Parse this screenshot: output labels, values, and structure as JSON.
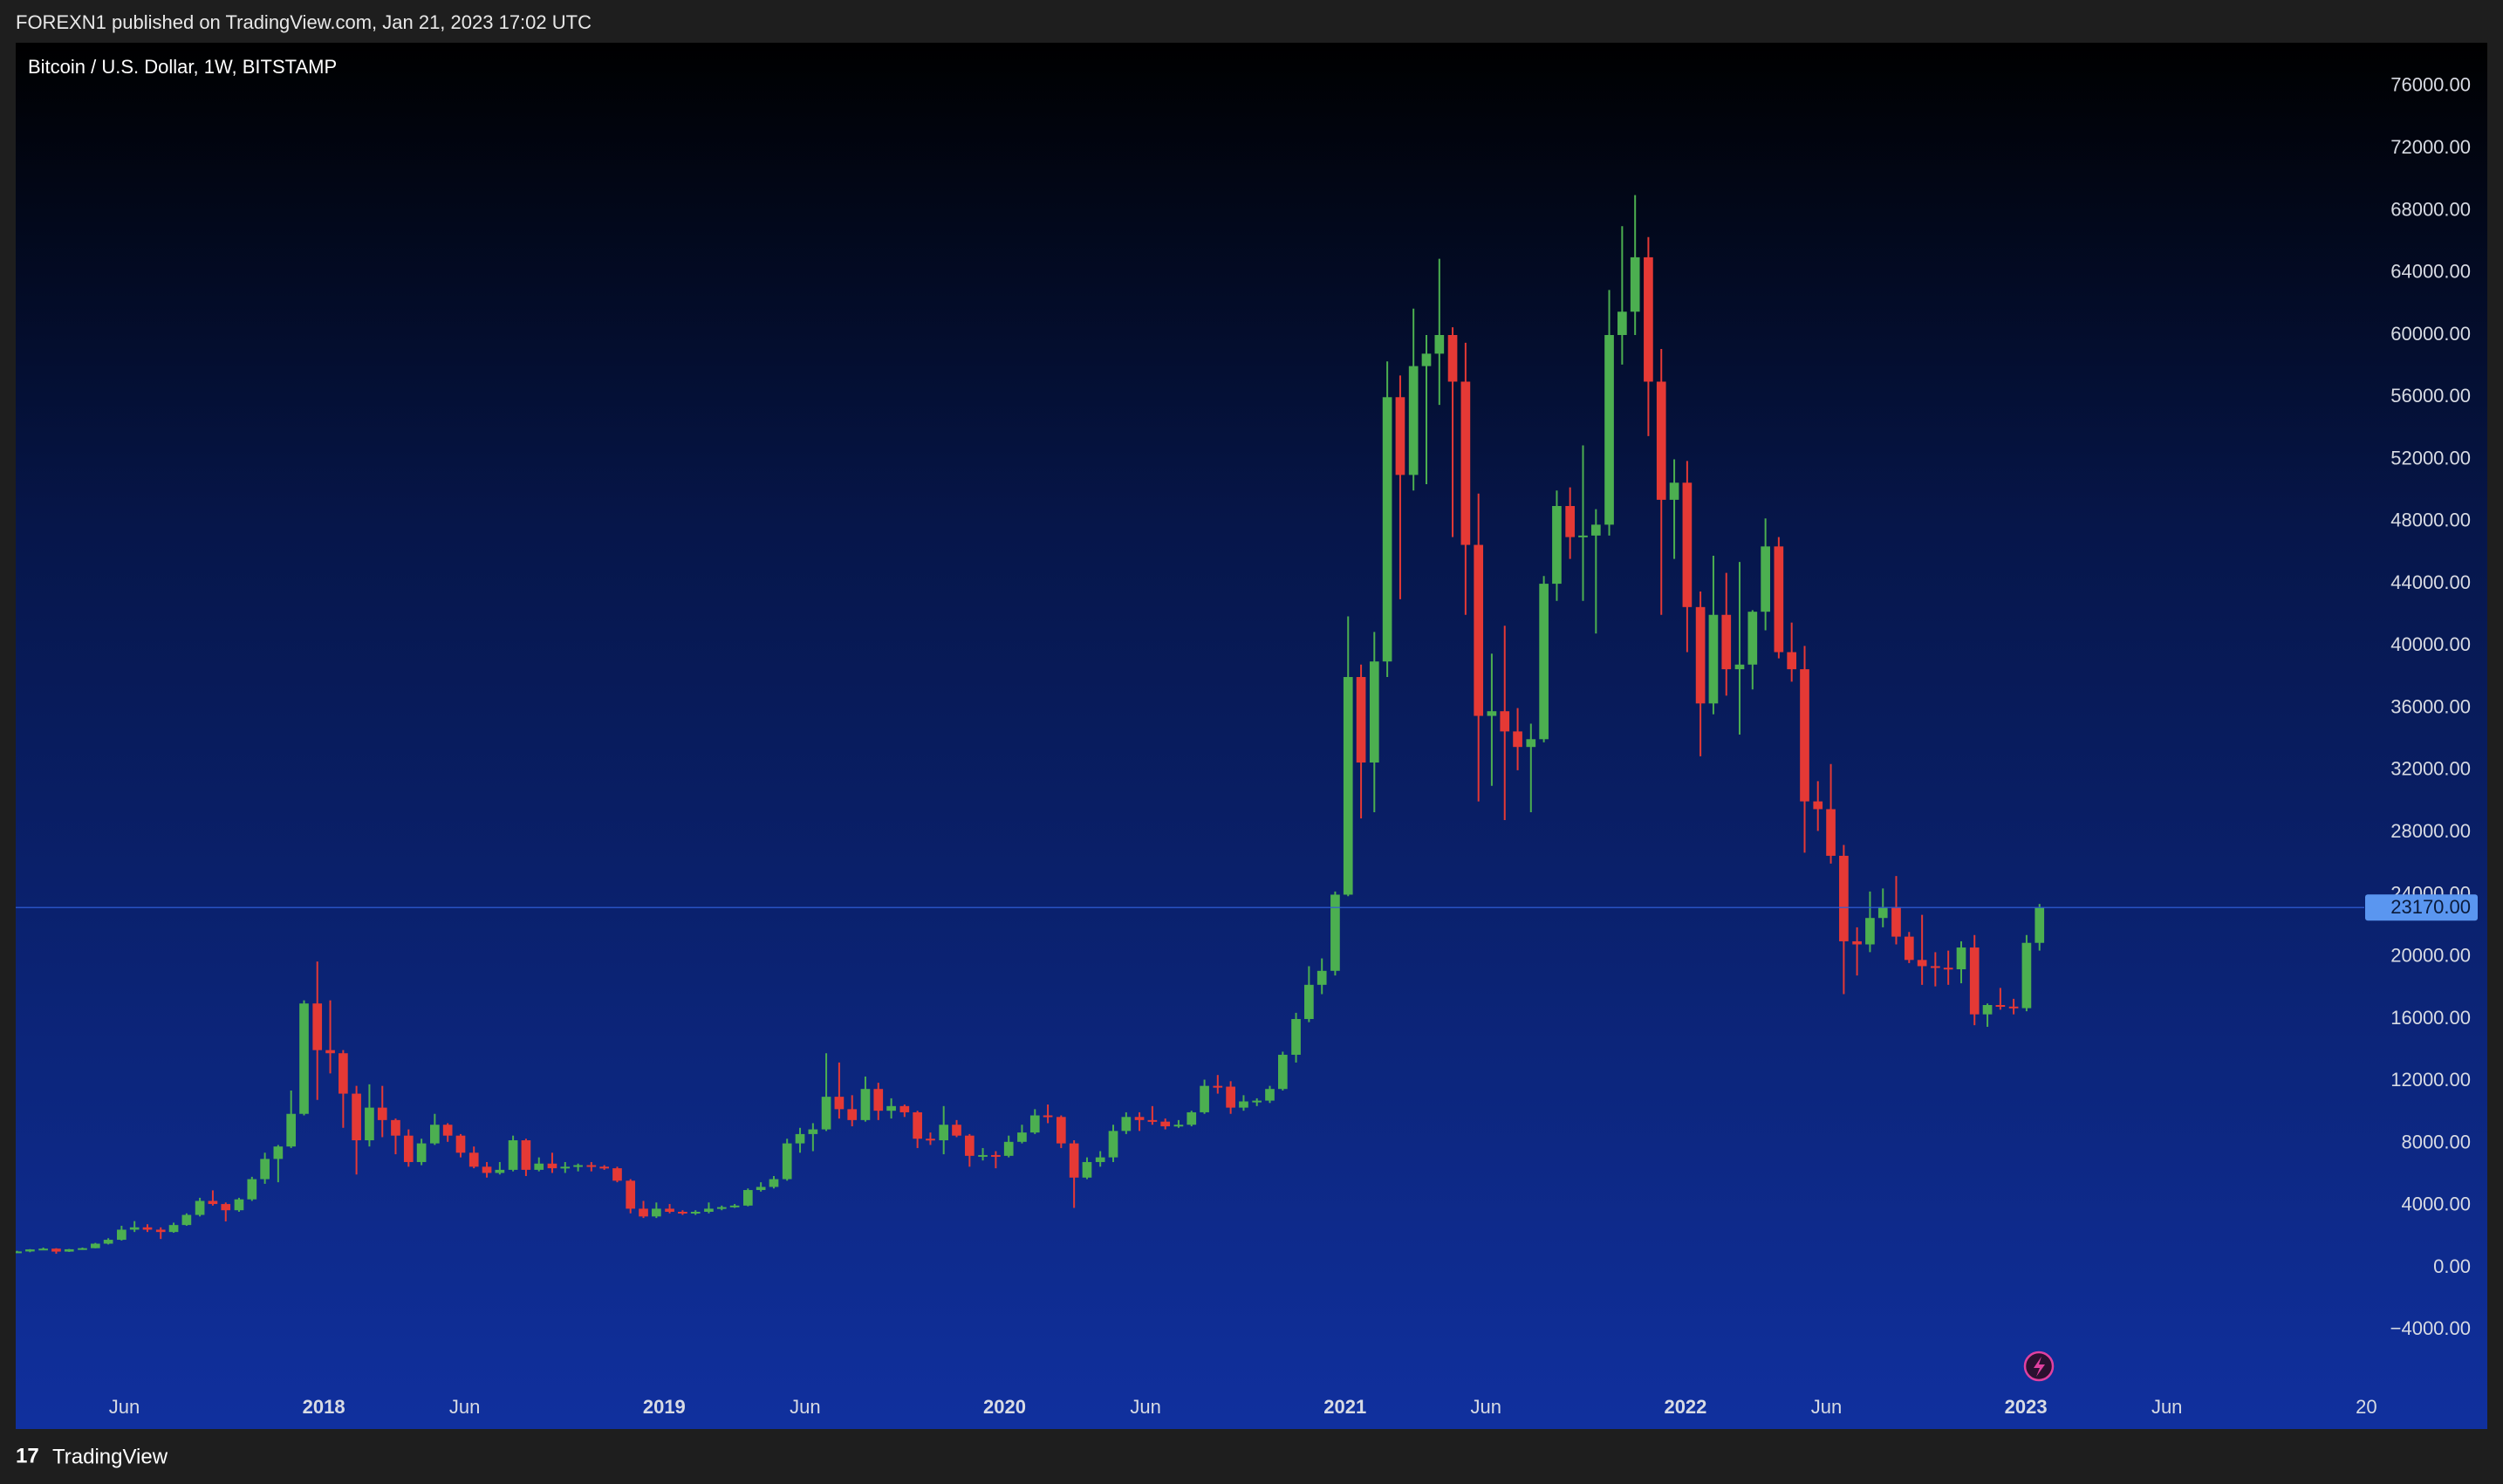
{
  "header": {
    "published": "FOREXN1 published on TradingView.com, Jan 21, 2023 17:02 UTC"
  },
  "footer": {
    "brand": "TradingView"
  },
  "chart_data": {
    "type": "candlestick",
    "title": "Bitcoin / U.S. Dollar, 1W, BITSTAMP",
    "up_color": "#4caf50",
    "down_color": "#e53935",
    "grid": false,
    "xlim": [
      2017.095,
      2023.994
    ],
    "xticks": [
      {
        "value": 2017.414,
        "label": "Jun"
      },
      2018,
      {
        "value": 2018.414,
        "label": "Jun"
      },
      2019,
      {
        "value": 2019.414,
        "label": "Jun"
      },
      2020,
      {
        "value": 2020.414,
        "label": "Jun"
      },
      2021,
      {
        "value": 2021.414,
        "label": "Jun"
      },
      2022,
      {
        "value": 2022.414,
        "label": "Jun"
      },
      2023,
      {
        "value": 2023.414,
        "label": "Jun"
      },
      {
        "value": 2024,
        "label": "20"
      }
    ],
    "ylim": [
      -7400,
      78800
    ],
    "yticks": [
      {
        "value": -4000,
        "label": "−4000.00"
      },
      {
        "value": 0,
        "label": "0.00"
      },
      {
        "value": 4000,
        "label": "4000.00"
      },
      {
        "value": 8000,
        "label": "8000.00"
      },
      {
        "value": 12000,
        "label": "12000.00"
      },
      {
        "value": 16000,
        "label": "16000.00"
      },
      {
        "value": 20000,
        "label": "20000.00"
      },
      {
        "value": 24000,
        "label": "24000.00"
      },
      {
        "value": 28000,
        "label": "28000.00"
      },
      {
        "value": 32000,
        "label": "32000.00"
      },
      {
        "value": 36000,
        "label": "36000.00"
      },
      {
        "value": 40000,
        "label": "40000.00"
      },
      {
        "value": 44000,
        "label": "44000.00"
      },
      {
        "value": 48000,
        "label": "48000.00"
      },
      {
        "value": 52000,
        "label": "52000.00"
      },
      {
        "value": 56000,
        "label": "56000.00"
      },
      {
        "value": 60000,
        "label": "60000.00"
      },
      {
        "value": 64000,
        "label": "64000.00"
      },
      {
        "value": 68000,
        "label": "68000.00"
      },
      {
        "value": 72000,
        "label": "72000.00"
      },
      {
        "value": 76000,
        "label": "76000.00"
      }
    ],
    "last_price": 23170,
    "last_price_label": "23170.00",
    "x": [
      2017.099,
      2017.137,
      2017.176,
      2017.214,
      2017.252,
      2017.291,
      2017.329,
      2017.367,
      2017.406,
      2017.444,
      2017.482,
      2017.521,
      2017.559,
      2017.597,
      2017.636,
      2017.674,
      2017.712,
      2017.751,
      2017.789,
      2017.827,
      2017.866,
      2017.904,
      2017.942,
      2017.981,
      2018.019,
      2018.057,
      2018.096,
      2018.134,
      2018.172,
      2018.211,
      2018.249,
      2018.287,
      2018.326,
      2018.364,
      2018.402,
      2018.441,
      2018.479,
      2018.517,
      2018.556,
      2018.594,
      2018.632,
      2018.671,
      2018.709,
      2018.747,
      2018.786,
      2018.824,
      2018.862,
      2018.901,
      2018.939,
      2018.977,
      2019.016,
      2019.054,
      2019.092,
      2019.131,
      2019.169,
      2019.207,
      2019.246,
      2019.284,
      2019.322,
      2019.361,
      2019.399,
      2019.437,
      2019.476,
      2019.514,
      2019.552,
      2019.591,
      2019.629,
      2019.667,
      2019.706,
      2019.744,
      2019.782,
      2019.821,
      2019.859,
      2019.897,
      2019.936,
      2019.974,
      2020.012,
      2020.051,
      2020.089,
      2020.127,
      2020.166,
      2020.204,
      2020.242,
      2020.281,
      2020.319,
      2020.357,
      2020.396,
      2020.434,
      2020.472,
      2020.511,
      2020.549,
      2020.587,
      2020.626,
      2020.664,
      2020.702,
      2020.741,
      2020.779,
      2020.817,
      2020.856,
      2020.894,
      2020.932,
      2020.971,
      2021.009,
      2021.047,
      2021.086,
      2021.124,
      2021.162,
      2021.201,
      2021.239,
      2021.277,
      2021.316,
      2021.354,
      2021.392,
      2021.431,
      2021.469,
      2021.507,
      2021.546,
      2021.584,
      2021.622,
      2021.661,
      2021.699,
      2021.737,
      2021.776,
      2021.814,
      2021.852,
      2021.891,
      2021.929,
      2021.967,
      2022.005,
      2022.044,
      2022.082,
      2022.12,
      2022.159,
      2022.197,
      2022.235,
      2022.274,
      2022.312,
      2022.35,
      2022.389,
      2022.427,
      2022.465,
      2022.504,
      2022.542,
      2022.58,
      2022.619,
      2022.657,
      2022.695,
      2022.734,
      2022.772,
      2022.81,
      2022.849,
      2022.887,
      2022.925,
      2022.964,
      2023.002,
      2023.04
    ],
    "ohlc": [
      [
        1000,
        1090,
        970,
        1050
      ],
      [
        1050,
        1200,
        1000,
        1180
      ],
      [
        1180,
        1300,
        1150,
        1230
      ],
      [
        1230,
        1260,
        900,
        1040
      ],
      [
        1040,
        1210,
        1020,
        1190
      ],
      [
        1190,
        1300,
        1150,
        1260
      ],
      [
        1260,
        1600,
        1250,
        1550
      ],
      [
        1550,
        1900,
        1500,
        1800
      ],
      [
        1800,
        2700,
        1750,
        2450
      ],
      [
        2450,
        3000,
        2300,
        2600
      ],
      [
        2600,
        2800,
        2300,
        2450
      ],
      [
        2450,
        2600,
        1850,
        2300
      ],
      [
        2300,
        2900,
        2250,
        2750
      ],
      [
        2750,
        3500,
        2700,
        3400
      ],
      [
        3400,
        4500,
        3300,
        4300
      ],
      [
        4300,
        4980,
        4000,
        4100
      ],
      [
        4100,
        4200,
        2980,
        3700
      ],
      [
        3700,
        4500,
        3600,
        4400
      ],
      [
        4400,
        5850,
        4300,
        5700
      ],
      [
        5700,
        7400,
        5400,
        7000
      ],
      [
        7000,
        7900,
        5500,
        7800
      ],
      [
        7800,
        11400,
        7700,
        9900
      ],
      [
        9900,
        17200,
        9800,
        17000
      ],
      [
        17000,
        19700,
        10800,
        14000
      ],
      [
        14000,
        17200,
        12500,
        13800
      ],
      [
        13800,
        14000,
        9000,
        11200
      ],
      [
        11200,
        11700,
        6000,
        8200
      ],
      [
        8200,
        11800,
        7800,
        10300
      ],
      [
        10300,
        11700,
        8400,
        9500
      ],
      [
        9500,
        9600,
        7300,
        8500
      ],
      [
        8500,
        8900,
        6500,
        6800
      ],
      [
        6800,
        8300,
        6600,
        8000
      ],
      [
        8000,
        9900,
        7900,
        9200
      ],
      [
        9200,
        9300,
        8100,
        8500
      ],
      [
        8500,
        8600,
        7100,
        7400
      ],
      [
        7400,
        7800,
        6400,
        6500
      ],
      [
        6500,
        6800,
        5800,
        6100
      ],
      [
        6100,
        6800,
        6000,
        6300
      ],
      [
        6300,
        8500,
        6200,
        8200
      ],
      [
        8200,
        8300,
        5900,
        6300
      ],
      [
        6300,
        7100,
        6200,
        6700
      ],
      [
        6700,
        7400,
        6100,
        6400
      ],
      [
        6400,
        6800,
        6100,
        6500
      ],
      [
        6500,
        6700,
        6200,
        6600
      ],
      [
        6600,
        6800,
        6200,
        6500
      ],
      [
        6500,
        6600,
        6300,
        6400
      ],
      [
        6400,
        6500,
        5500,
        5600
      ],
      [
        5600,
        5700,
        3500,
        3800
      ],
      [
        3800,
        4300,
        3200,
        3300
      ],
      [
        3300,
        4200,
        3200,
        3800
      ],
      [
        3800,
        4100,
        3500,
        3600
      ],
      [
        3600,
        3700,
        3400,
        3500
      ],
      [
        3500,
        3700,
        3400,
        3600
      ],
      [
        3600,
        4200,
        3500,
        3800
      ],
      [
        3800,
        4000,
        3700,
        3900
      ],
      [
        3900,
        4100,
        3850,
        4000
      ],
      [
        4000,
        5100,
        3950,
        5000
      ],
      [
        5000,
        5500,
        4900,
        5200
      ],
      [
        5200,
        5900,
        5100,
        5700
      ],
      [
        5700,
        8300,
        5600,
        8000
      ],
      [
        8000,
        9000,
        7400,
        8600
      ],
      [
        8600,
        9300,
        7500,
        8900
      ],
      [
        8900,
        13800,
        8800,
        11000
      ],
      [
        11000,
        13200,
        9600,
        10200
      ],
      [
        10200,
        11100,
        9100,
        9500
      ],
      [
        9500,
        12300,
        9400,
        11500
      ],
      [
        11500,
        11900,
        9500,
        10100
      ],
      [
        10100,
        10900,
        9600,
        10400
      ],
      [
        10400,
        10500,
        9700,
        10000
      ],
      [
        10000,
        10100,
        7700,
        8300
      ],
      [
        8300,
        8700,
        7900,
        8200
      ],
      [
        8200,
        10400,
        7300,
        9200
      ],
      [
        9200,
        9500,
        8400,
        8500
      ],
      [
        8500,
        8600,
        6500,
        7200
      ],
      [
        7200,
        7700,
        6900,
        7250
      ],
      [
        7250,
        7500,
        6400,
        7200
      ],
      [
        7200,
        8500,
        7100,
        8100
      ],
      [
        8100,
        9200,
        8000,
        8700
      ],
      [
        8700,
        10200,
        8600,
        9800
      ],
      [
        9800,
        10500,
        9300,
        9700
      ],
      [
        9700,
        9800,
        7700,
        8000
      ],
      [
        8000,
        8200,
        3850,
        5800
      ],
      [
        5800,
        7100,
        5700,
        6800
      ],
      [
        6800,
        7500,
        6500,
        7100
      ],
      [
        7100,
        9200,
        6800,
        8800
      ],
      [
        8800,
        10000,
        8600,
        9700
      ],
      [
        9700,
        10000,
        8800,
        9500
      ],
      [
        9500,
        10400,
        9200,
        9400
      ],
      [
        9400,
        9600,
        8900,
        9100
      ],
      [
        9100,
        9500,
        9000,
        9200
      ],
      [
        9200,
        10100,
        9100,
        10000
      ],
      [
        10000,
        12100,
        9900,
        11700
      ],
      [
        11700,
        12400,
        11200,
        11650
      ],
      [
        11650,
        12000,
        9900,
        10300
      ],
      [
        10300,
        11100,
        10100,
        10700
      ],
      [
        10700,
        10900,
        10400,
        10750
      ],
      [
        10750,
        11700,
        10600,
        11500
      ],
      [
        11500,
        13900,
        11400,
        13700
      ],
      [
        13700,
        16400,
        13200,
        16000
      ],
      [
        16000,
        19400,
        15800,
        18200
      ],
      [
        18200,
        19900,
        17600,
        19100
      ],
      [
        19100,
        24200,
        18800,
        24000
      ],
      [
        24000,
        41900,
        23900,
        38000
      ],
      [
        38000,
        38800,
        28900,
        32500
      ],
      [
        32500,
        40900,
        29300,
        39000
      ],
      [
        39000,
        58300,
        38000,
        56000
      ],
      [
        56000,
        57400,
        43000,
        51000
      ],
      [
        51000,
        61700,
        50000,
        58000
      ],
      [
        58000,
        60000,
        50400,
        58800
      ],
      [
        58800,
        64900,
        55500,
        60000
      ],
      [
        60000,
        60500,
        47000,
        57000
      ],
      [
        57000,
        59500,
        42000,
        46500
      ],
      [
        46500,
        49800,
        30000,
        35500
      ],
      [
        35500,
        39500,
        31000,
        35800
      ],
      [
        35800,
        41300,
        28800,
        34500
      ],
      [
        34500,
        36000,
        32000,
        33500
      ],
      [
        33500,
        35000,
        29300,
        34000
      ],
      [
        34000,
        44500,
        33800,
        44000
      ],
      [
        44000,
        50000,
        42900,
        49000
      ],
      [
        49000,
        50200,
        45600,
        47000
      ],
      [
        47000,
        52900,
        42900,
        47100
      ],
      [
        47100,
        48800,
        40800,
        47800
      ],
      [
        47800,
        62900,
        47100,
        60000
      ],
      [
        60000,
        67000,
        58100,
        61500
      ],
      [
        61500,
        69000,
        60000,
        65000
      ],
      [
        65000,
        66300,
        53500,
        57000
      ],
      [
        57000,
        59100,
        42000,
        49400
      ],
      [
        49400,
        52000,
        45600,
        50500
      ],
      [
        50500,
        51900,
        39600,
        42500
      ],
      [
        42500,
        43500,
        32900,
        36300
      ],
      [
        36300,
        45800,
        35600,
        42000
      ],
      [
        42000,
        44700,
        36800,
        38500
      ],
      [
        38500,
        45400,
        34300,
        38800
      ],
      [
        38800,
        42300,
        37200,
        42200
      ],
      [
        42200,
        48200,
        41000,
        46400
      ],
      [
        46400,
        47000,
        39200,
        39600
      ],
      [
        39600,
        41500,
        37700,
        38500
      ],
      [
        38500,
        40000,
        26700,
        30000
      ],
      [
        30000,
        31300,
        28100,
        29500
      ],
      [
        29500,
        32400,
        26000,
        26500
      ],
      [
        26500,
        27200,
        17600,
        21000
      ],
      [
        21000,
        21900,
        18800,
        20800
      ],
      [
        20800,
        24200,
        20300,
        22500
      ],
      [
        22500,
        24400,
        21900,
        23200
      ],
      [
        23200,
        25200,
        20800,
        21300
      ],
      [
        21300,
        21600,
        19600,
        19800
      ],
      [
        19800,
        22700,
        18200,
        19400
      ],
      [
        19400,
        20300,
        18100,
        19300
      ],
      [
        19300,
        20400,
        18200,
        19200
      ],
      [
        19200,
        21000,
        18300,
        20600
      ],
      [
        20600,
        21400,
        15600,
        16300
      ],
      [
        16300,
        17000,
        15500,
        16900
      ],
      [
        16900,
        18000,
        16600,
        16800
      ],
      [
        16800,
        17300,
        16300,
        16700
      ],
      [
        16700,
        21400,
        16500,
        20900
      ],
      [
        20900,
        23400,
        20400,
        23170
      ]
    ]
  }
}
